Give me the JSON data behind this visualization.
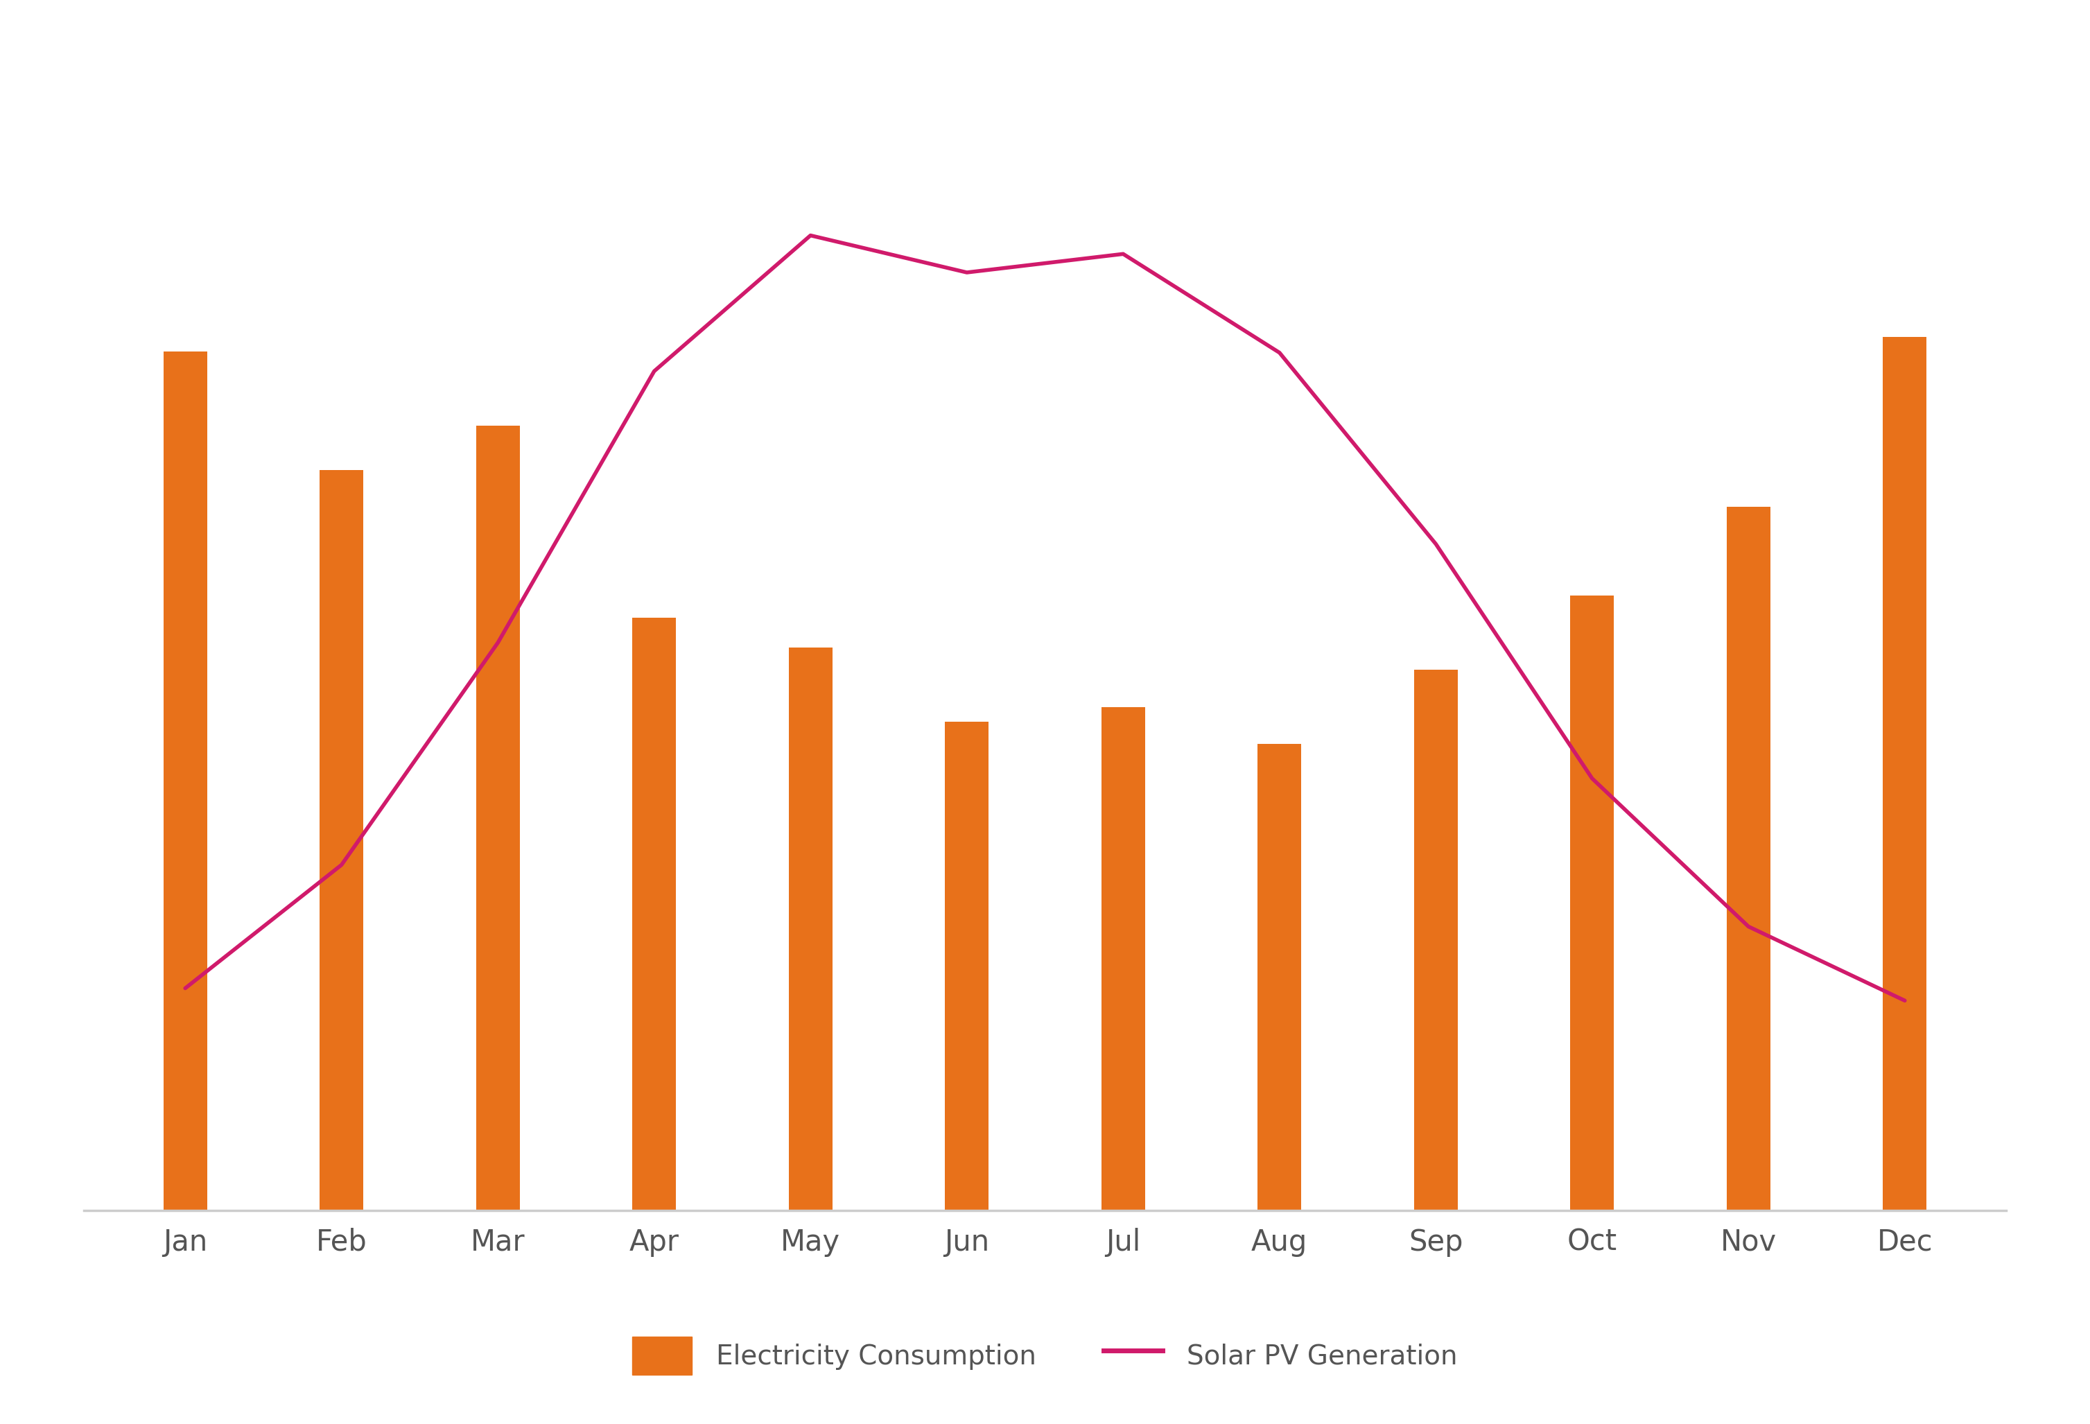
{
  "months": [
    "Jan",
    "Feb",
    "Mar",
    "Apr",
    "May",
    "Jun",
    "Jul",
    "Aug",
    "Sep",
    "Oct",
    "Nov",
    "Dec"
  ],
  "consumption": [
    580,
    500,
    530,
    400,
    380,
    330,
    340,
    315,
    365,
    415,
    475,
    590
  ],
  "solar": [
    30,
    130,
    310,
    530,
    640,
    610,
    625,
    545,
    390,
    200,
    80,
    20
  ],
  "bar_color": "#E8711A",
  "line_color": "#D01A6B",
  "background_color": "#FFFFFF",
  "legend_elec": "Electricity Consumption",
  "legend_solar": "Solar PV Generation",
  "bar_ylim_min": 0,
  "bar_ylim_max": 750,
  "solar_ylim_min": -150,
  "solar_ylim_max": 750,
  "bar_width": 0.28,
  "line_width": 4.0,
  "tick_fontsize": 30,
  "legend_fontsize": 28,
  "axis_color": "#CCCCCC"
}
